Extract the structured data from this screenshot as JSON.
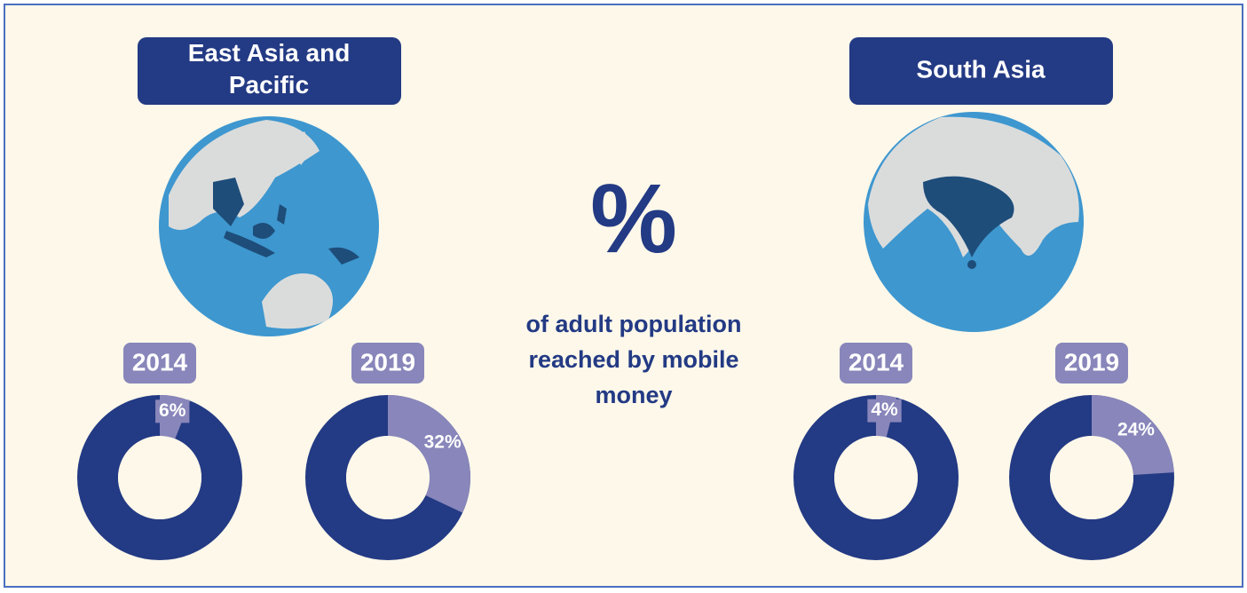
{
  "headline": "%",
  "caption": "of adult population reached by mobile money",
  "regions": [
    "East Asia and Pacific",
    "South Asia"
  ],
  "chart_data": [
    {
      "type": "pie",
      "title": "2014",
      "region": 0,
      "values": [
        6
      ],
      "value_labels": [
        "6%"
      ],
      "color": "#8886ba",
      "base_color": "#233a84"
    },
    {
      "type": "pie",
      "title": "2019",
      "region": 0,
      "values": [
        32
      ],
      "value_labels": [
        "32%"
      ],
      "color": "#8886ba",
      "base_color": "#233a84"
    },
    {
      "type": "pie",
      "title": "2014",
      "region": 1,
      "values": [
        4
      ],
      "value_labels": [
        "4%"
      ],
      "color": "#8886ba",
      "base_color": "#233a84"
    },
    {
      "type": "pie",
      "title": "2019",
      "region": 1,
      "values": [
        24
      ],
      "value_labels": [
        "24%"
      ],
      "color": "#8886ba",
      "base_color": "#233a84"
    }
  ]
}
